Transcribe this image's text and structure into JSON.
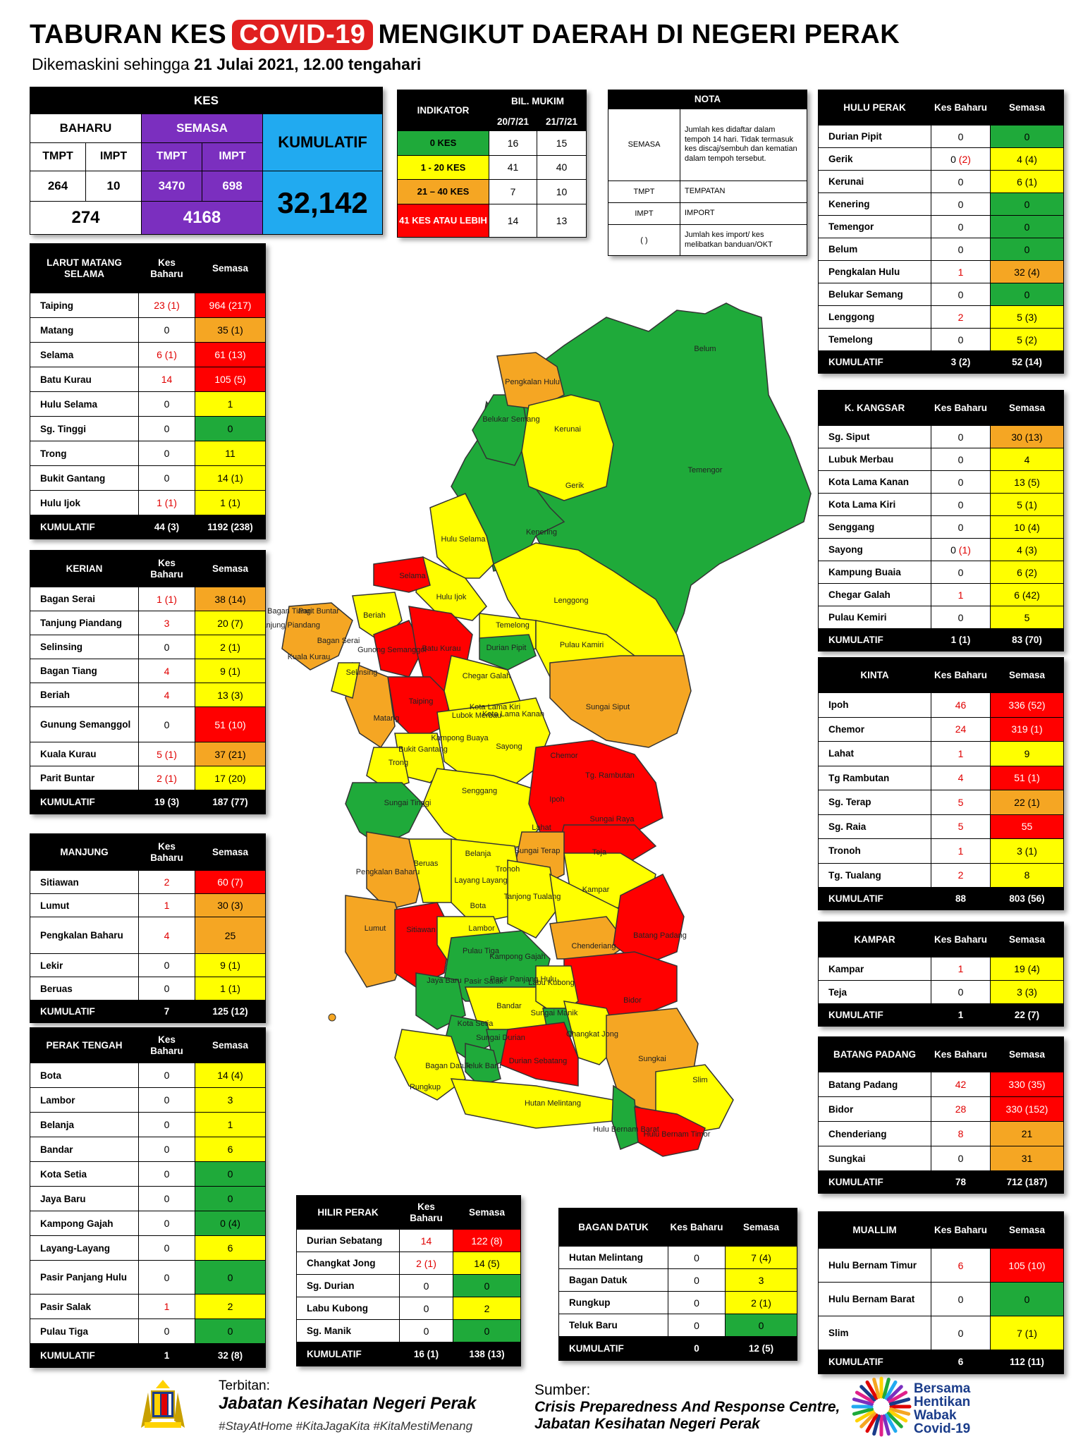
{
  "header": {
    "title_pre": "TABURAN KES",
    "title_hl": "COVID-19",
    "title_post": "MENGIKUT DAERAH DI NEGERI PERAK",
    "subtitle_pre": "Dikemaskini sehingga",
    "subtitle_bold": "21 Julai 2021, 12.00 tengahari"
  },
  "kes": {
    "title": "KES",
    "baharu": "BAHARU",
    "semasa": "SEMASA",
    "kumulatif": "KUMULATIF",
    "tmpt": "TMPT",
    "impt": "IMPT",
    "baharu_tmpt": "264",
    "baharu_impt": "10",
    "semasa_tmpt": "3470",
    "semasa_impt": "698",
    "baharu_total": "274",
    "semasa_total": "4168",
    "kumulatif_total": "32,142"
  },
  "indikator": {
    "h1": "INDIKATOR",
    "h2": "BIL. MUKIM",
    "d1": "20/7/21",
    "d2": "21/7/21",
    "rows": [
      {
        "label": "0 KES",
        "a": "16",
        "b": "15",
        "color": "#1faa3a"
      },
      {
        "label": "1 - 20 KES",
        "a": "41",
        "b": "40",
        "color": "#ffff00"
      },
      {
        "label": "21 – 40 KES",
        "a": "7",
        "b": "10",
        "color": "#f5a623"
      },
      {
        "label": "41 KES ATAU LEBIH",
        "a": "14",
        "b": "13",
        "color": "#ff0000"
      }
    ]
  },
  "nota": {
    "title": "NOTA",
    "rows": [
      {
        "k": "SEMASA",
        "v": "Jumlah kes didaftar dalam tempoh 14 hari. Tidak termasuk kes discaj/sembuh dan kematian dalam tempoh tersebut."
      },
      {
        "k": "TMPT",
        "v": "TEMPATAN"
      },
      {
        "k": "IMPT",
        "v": "IMPORT"
      },
      {
        "k": "( )",
        "v": "Jumlah kes import/ kes melibatkan banduan/OKT"
      }
    ]
  },
  "col_kes": "Kes Baharu",
  "col_semasa": "Semasa",
  "kumulatif_label": "KUMULATIF",
  "districts": [
    {
      "id": "larut",
      "title": "LARUT MATANG SELAMA",
      "rows": [
        [
          "Taiping",
          "23 (1)",
          "964 (217)",
          "r",
          "r"
        ],
        [
          "Matang",
          "0",
          "35 (1)",
          "",
          "o"
        ],
        [
          "Selama",
          "6 (1)",
          "61 (13)",
          "r",
          "r"
        ],
        [
          "Batu Kurau",
          "14",
          "105 (5)",
          "r",
          "r"
        ],
        [
          "Hulu Selama",
          "0",
          "1",
          "",
          "y"
        ],
        [
          "Sg. Tinggi",
          "0",
          "0",
          "",
          "g"
        ],
        [
          "Trong",
          "0",
          "11",
          "",
          "y"
        ],
        [
          "Bukit Gantang",
          "0",
          "14 (1)",
          "",
          "y"
        ],
        [
          "Hulu Ijok",
          "1 (1)",
          "1 (1)",
          "r",
          "y"
        ]
      ],
      "total": [
        "44 (3)",
        "1192 (238)"
      ]
    },
    {
      "id": "kerian",
      "title": "KERIAN",
      "rows": [
        [
          "Bagan Serai",
          "1 (1)",
          "38 (14)",
          "r",
          "o"
        ],
        [
          "Tanjung Piandang",
          "3",
          "20 (7)",
          "r",
          "y"
        ],
        [
          "Selinsing",
          "0",
          "2 (1)",
          "",
          "y"
        ],
        [
          "Bagan Tiang",
          "4",
          "9 (1)",
          "r",
          "y"
        ],
        [
          "Beriah",
          "4",
          "13 (3)",
          "r",
          "y"
        ],
        [
          "Gunung Semanggol",
          "0",
          "51 (10)",
          "",
          "r"
        ],
        [
          "Kuala Kurau",
          "5 (1)",
          "37 (21)",
          "r",
          "o"
        ],
        [
          "Parit Buntar",
          "2 (1)",
          "17 (20)",
          "r",
          "y"
        ]
      ],
      "total": [
        "19 (3)",
        "187 (77)"
      ]
    },
    {
      "id": "manjung",
      "title": "MANJUNG",
      "rows": [
        [
          "Sitiawan",
          "2",
          "60 (7)",
          "r",
          "r"
        ],
        [
          "Lumut",
          "1",
          "30 (3)",
          "r",
          "o"
        ],
        [
          "Pengkalan Baharu",
          "4",
          "25",
          "r",
          "o"
        ],
        [
          "Lekir",
          "0",
          "9 (1)",
          "",
          "y"
        ],
        [
          "Beruas",
          "0",
          "1 (1)",
          "",
          "y"
        ]
      ],
      "total": [
        "7",
        "125 (12)"
      ]
    },
    {
      "id": "tengah",
      "title": "PERAK TENGAH",
      "rows": [
        [
          "Bota",
          "0",
          "14 (4)",
          "",
          "y"
        ],
        [
          "Lambor",
          "0",
          "3",
          "",
          "y"
        ],
        [
          "Belanja",
          "0",
          "1",
          "",
          "y"
        ],
        [
          "Bandar",
          "0",
          "6",
          "",
          "y"
        ],
        [
          "Kota Setia",
          "0",
          "0",
          "",
          "g"
        ],
        [
          "Jaya Baru",
          "0",
          "0",
          "",
          "g"
        ],
        [
          "Kampong Gajah",
          "0",
          "0 (4)",
          "",
          "g"
        ],
        [
          "Layang-Layang",
          "0",
          "6",
          "",
          "y"
        ],
        [
          "Pasir Panjang Hulu",
          "0",
          "0",
          "",
          "g"
        ],
        [
          "Pasir Salak",
          "1",
          "2",
          "r",
          "y"
        ],
        [
          "Pulau Tiga",
          "0",
          "0",
          "",
          "g"
        ]
      ],
      "total": [
        "1",
        "32 (8)"
      ]
    },
    {
      "id": "hilir",
      "title": "HILIR PERAK",
      "rows": [
        [
          "Durian Sebatang",
          "14",
          "122 (8)",
          "r",
          "r"
        ],
        [
          "Changkat Jong",
          "2 (1)",
          "14 (5)",
          "r",
          "y"
        ],
        [
          "Sg. Durian",
          "0",
          "0",
          "",
          "g"
        ],
        [
          "Labu Kubong",
          "0",
          "2",
          "",
          "y"
        ],
        [
          "Sg. Manik",
          "0",
          "0",
          "",
          "g"
        ]
      ],
      "total": [
        "16 (1)",
        "138 (13)"
      ]
    },
    {
      "id": "bagan",
      "title": "BAGAN DATUK",
      "rows": [
        [
          "Hutan Melintang",
          "0",
          "7 (4)",
          "",
          "y"
        ],
        [
          "Bagan Datuk",
          "0",
          "3",
          "",
          "y"
        ],
        [
          "Rungkup",
          "0",
          "2 (1)",
          "",
          "y"
        ],
        [
          "Teluk Baru",
          "0",
          "0",
          "",
          "g"
        ]
      ],
      "total": [
        "0",
        "12 (5)"
      ]
    },
    {
      "id": "hulu",
      "title": "HULU PERAK",
      "rows": [
        [
          "Durian Pipit",
          "0",
          "0",
          "",
          "g"
        ],
        [
          "Gerik",
          "0 (2)",
          "4 (4)",
          "r2",
          "y"
        ],
        [
          "Kerunai",
          "0",
          "6 (1)",
          "",
          "y"
        ],
        [
          "Kenering",
          "0",
          "0",
          "",
          "g"
        ],
        [
          "Temengor",
          "0",
          "0",
          "",
          "g"
        ],
        [
          "Belum",
          "0",
          "0",
          "",
          "g"
        ],
        [
          "Pengkalan Hulu",
          "1",
          "32 (4)",
          "r",
          "o"
        ],
        [
          "Belukar Semang",
          "0",
          "0",
          "",
          "g"
        ],
        [
          "Lenggong",
          "2",
          "5 (3)",
          "r",
          "y"
        ],
        [
          "Temelong",
          "0",
          "5 (2)",
          "",
          "y"
        ]
      ],
      "total": [
        "3 (2)",
        "52 (14)"
      ]
    },
    {
      "id": "kangsar",
      "title": "K. KANGSAR",
      "rows": [
        [
          "Sg. Siput",
          "0",
          "30 (13)",
          "",
          "o"
        ],
        [
          "Lubuk Merbau",
          "0",
          "4",
          "",
          "y"
        ],
        [
          "Kota Lama Kanan",
          "0",
          "13 (5)",
          "",
          "y"
        ],
        [
          "Kota Lama Kiri",
          "0",
          "5 (1)",
          "",
          "y"
        ],
        [
          "Senggang",
          "0",
          "10 (4)",
          "",
          "y"
        ],
        [
          "Sayong",
          "0 (1)",
          "4 (3)",
          "r2",
          "y"
        ],
        [
          "Kampung Buaia",
          "0",
          "6 (2)",
          "",
          "y"
        ],
        [
          "Chegar Galah",
          "1",
          "6 (42)",
          "r",
          "y"
        ],
        [
          "Pulau Kemiri",
          "0",
          "5",
          "",
          "y"
        ]
      ],
      "total": [
        "1 (1)",
        "83 (70)"
      ]
    },
    {
      "id": "kinta",
      "title": "KINTA",
      "rows": [
        [
          "Ipoh",
          "46",
          "336 (52)",
          "r",
          "r"
        ],
        [
          "Chemor",
          "24",
          "319 (1)",
          "r",
          "r"
        ],
        [
          "Lahat",
          "1",
          "9",
          "r",
          "y"
        ],
        [
          "Tg Rambutan",
          "4",
          "51 (1)",
          "r",
          "r"
        ],
        [
          "Sg. Terap",
          "5",
          "22 (1)",
          "r",
          "o"
        ],
        [
          "Sg. Raia",
          "5",
          "55",
          "r",
          "r"
        ],
        [
          "Tronoh",
          "1",
          "3 (1)",
          "r",
          "y"
        ],
        [
          "Tg. Tualang",
          "2",
          "8",
          "r",
          "y"
        ]
      ],
      "total": [
        "88",
        "803 (56)"
      ]
    },
    {
      "id": "kampar",
      "title": "KAMPAR",
      "rows": [
        [
          "Kampar",
          "1",
          "19 (4)",
          "r",
          "y"
        ],
        [
          "Teja",
          "0",
          "3 (3)",
          "",
          "y"
        ]
      ],
      "total": [
        "1",
        "22 (7)"
      ]
    },
    {
      "id": "batang",
      "title": "BATANG PADANG",
      "rows": [
        [
          "Batang Padang",
          "42",
          "330 (35)",
          "r",
          "r"
        ],
        [
          "Bidor",
          "28",
          "330 (152)",
          "r",
          "r"
        ],
        [
          "Chenderiang",
          "8",
          "21",
          "r",
          "o"
        ],
        [
          "Sungkai",
          "0",
          "31",
          "",
          "o"
        ]
      ],
      "total": [
        "78",
        "712 (187)"
      ]
    },
    {
      "id": "muallim",
      "title": "MUALLIM",
      "rows": [
        [
          "Hulu Bernam Timur",
          "6",
          "105 (10)",
          "r",
          "r"
        ],
        [
          "Hulu Bernam Barat",
          "0",
          "0",
          "",
          "g"
        ],
        [
          "Slim",
          "0",
          "7 (1)",
          "",
          "y"
        ]
      ],
      "total": [
        "6",
        "112 (11)"
      ]
    }
  ],
  "map_labels": [
    "Belum",
    "Pengkalan Hulu",
    "Belukar Semang",
    "Kerunai",
    "Gerik",
    "Temengor",
    "Kenering",
    "Hulu Selama",
    "Selama",
    "Hulu Ijok",
    "Lenggong",
    "Beriah",
    "Bagan Tiang",
    "Parit Buntar",
    "Tanjung Piandang",
    "Kuala Kurau",
    "Bagan Serai",
    "Gunong Semanggol",
    "Batu Kurau",
    "Temelong",
    "Durian Pipit",
    "Pulau Kamiri",
    "Selinsing",
    "Chegar Galah",
    "Taiping",
    "Matang",
    "Lubok Merbau",
    "Kota Lama Kiri",
    "Kota Lama Kanan",
    "Kampong Buaya",
    "Sungai Siput",
    "Bukit Gantang",
    "Trong",
    "Sayong",
    "Chemor",
    "Tg. Rambutan",
    "Sungai Tinggi",
    "Senggang",
    "Ipoh",
    "Sungai Raya",
    "Lahat",
    "Sungai Terap",
    "Teja",
    "Pengkalan Baharu",
    "Beruas",
    "Belanja",
    "Layang Layang",
    "Tronoh",
    "Tanjong Tualang",
    "Kampar",
    "Lumut",
    "Sitiawan",
    "Bota",
    "Lambor",
    "Chenderiang",
    "Batang Padang",
    "Pulau Tiga",
    "Kampong Gajah",
    "Pasir Panjang Hulu",
    "Jaya Baru",
    "Pasir Salak",
    "Labu Kubong",
    "Bidor",
    "Bandar",
    "Sungai Manik",
    "Kota Setia",
    "Sungai Durian",
    "Changkat Jong",
    "Durian Sebatang",
    "Bagan Datuk",
    "Teluk Baru",
    "Sungkai",
    "Rungkup",
    "Slim",
    "Hutan Melintang",
    "Hulu Bernam Barat",
    "Hulu Bernam Timor"
  ],
  "footer": {
    "terbitan": "Terbitan:",
    "jabatan": "Jabatan Kesihatan Negeri Perak",
    "hashtags": "#StayAtHome #KitaJagaKita #KitaMestiMenang",
    "sumber": "Sumber:",
    "sumber1": "Crisis Preparedness And Response Centre,",
    "sumber2": "Jabatan Kesihatan Negeri Perak",
    "logo_text": "Bersama Hentikan Wabak Covid-19"
  }
}
